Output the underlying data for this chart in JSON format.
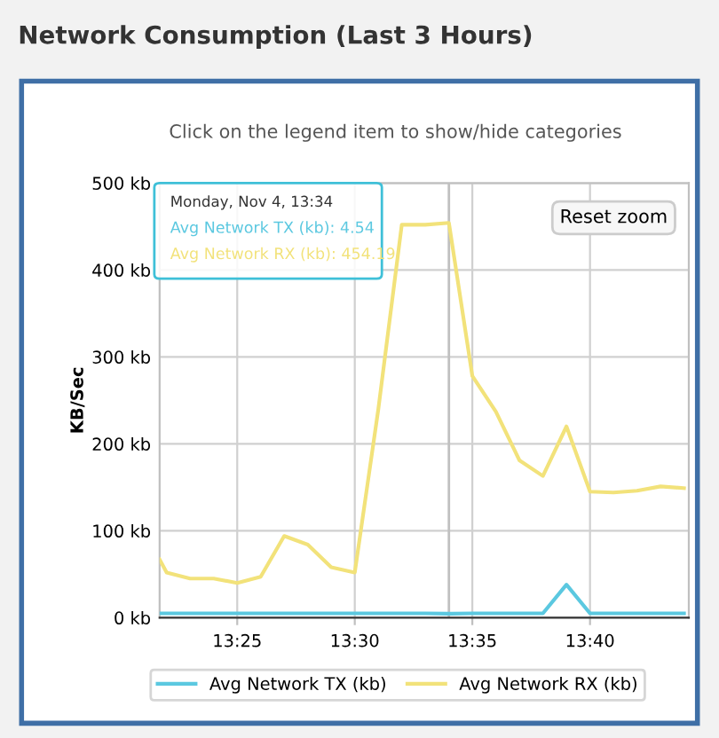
{
  "chart_data": {
    "type": "line",
    "title": "Network Consumption (Last 3 Hours)",
    "subtitle": "Click on the legend item to show/hide categories",
    "ylabel": "KB/Sec",
    "x": [
      13.3617,
      13.3667,
      13.3833,
      13.4,
      13.4167,
      13.4333,
      13.45,
      13.4667,
      13.4833,
      13.5,
      13.5167,
      13.5333,
      13.55,
      13.5667,
      13.5833,
      13.6,
      13.6167,
      13.6333,
      13.65,
      13.6667,
      13.6833,
      13.7,
      13.7167,
      13.7333
    ],
    "series": [
      {
        "name": "Avg Network TX (kb)",
        "color": "#5bc8e0",
        "values": [
          5,
          5,
          5,
          5,
          5,
          5,
          5,
          5,
          5,
          5,
          5,
          5,
          5,
          4.54,
          5,
          5,
          5,
          5,
          38,
          5,
          5,
          5,
          5,
          5
        ]
      },
      {
        "name": "Avg Network RX (kb)",
        "color": "#f2e27a",
        "values": [
          67,
          52,
          45,
          45,
          40,
          47,
          94,
          84,
          58,
          52,
          240,
          452,
          452,
          454.19,
          278,
          237,
          181,
          163,
          220,
          145,
          144,
          146,
          151,
          149
        ]
      }
    ],
    "xlim": [
      13.3617,
      13.7367
    ],
    "xticks": [
      {
        "value": 13.4167,
        "label": "13:25"
      },
      {
        "value": 13.5,
        "label": "13:30"
      },
      {
        "value": 13.5833,
        "label": "13:35"
      },
      {
        "value": 13.6667,
        "label": "13:40"
      }
    ],
    "ylim": [
      0,
      500
    ],
    "yticks": [
      {
        "value": 0,
        "label": "0 kb"
      },
      {
        "value": 100,
        "label": "100 kb"
      },
      {
        "value": 200,
        "label": "200 kb"
      },
      {
        "value": 300,
        "label": "300 kb"
      },
      {
        "value": 400,
        "label": "400 kb"
      },
      {
        "value": 500,
        "label": "500 kb"
      }
    ],
    "ref_lines": [
      {
        "axis": "x",
        "value": 13.5667,
        "color": "#c0c0c0"
      }
    ],
    "annotations": [
      "Monday, Nov 4, 13:34",
      "Avg Network TX (kb): 4.54",
      "Avg Network RX (kb): 454.19",
      "Reset zoom"
    ],
    "grid": true,
    "legend": "bottom",
    "marker": "none",
    "line_style": "solid"
  }
}
